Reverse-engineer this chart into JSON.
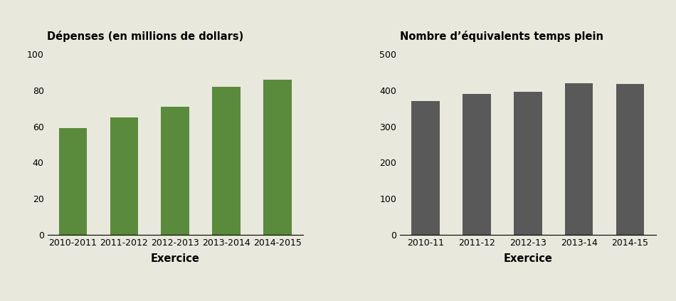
{
  "left_title": "Dépenses (en millions de dollars)",
  "left_categories": [
    "2010-2011",
    "2011-2012",
    "2012-2013",
    "2013-2014",
    "2014-2015"
  ],
  "left_values": [
    59,
    65,
    71,
    82,
    86
  ],
  "left_ylim": [
    0,
    100
  ],
  "left_yticks": [
    0,
    20,
    40,
    60,
    80,
    100
  ],
  "left_bar_color": "#5a8a3c",
  "left_xlabel": "Exercice",
  "right_title": "Nombre d’équivalents temps plein",
  "right_categories": [
    "2010-11",
    "2011-12",
    "2012-13",
    "2013-14",
    "2014-15"
  ],
  "right_values": [
    370,
    390,
    396,
    420,
    418
  ],
  "right_ylim": [
    0,
    500
  ],
  "right_yticks": [
    0,
    100,
    200,
    300,
    400,
    500
  ],
  "right_bar_color": "#595959",
  "right_xlabel": "Exercice",
  "background_color": "#e8e8dc",
  "title_fontsize": 10.5,
  "tick_fontsize": 9,
  "xlabel_fontsize": 10.5
}
